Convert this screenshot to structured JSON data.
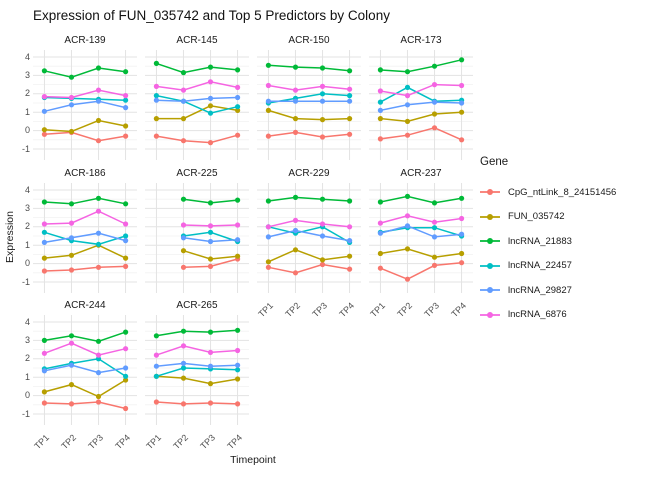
{
  "chart_data": {
    "type": "line",
    "title": "Expression of FUN_035742 and Top 5 Predictors by Colony",
    "xlabel": "Timepoint",
    "ylabel": "Expression",
    "x_categories": [
      "TP1",
      "TP2",
      "TP3",
      "TP4"
    ],
    "y_ticks": [
      4,
      3,
      2,
      1,
      0,
      -1
    ],
    "ylim": [
      -1.25,
      4.25
    ],
    "grid": true,
    "legend_title": "Gene",
    "legend_position": "right",
    "series": [
      {
        "name": "CpG_ntLink_8_24151456",
        "color": "#F8766D"
      },
      {
        "name": "FUN_035742",
        "color": "#B79F00"
      },
      {
        "name": "lncRNA_21883",
        "color": "#00BA38"
      },
      {
        "name": "lncRNA_22457",
        "color": "#00BFC4"
      },
      {
        "name": "lncRNA_29827",
        "color": "#619CFF"
      },
      {
        "name": "lncRNA_6876",
        "color": "#F564E2"
      }
    ],
    "facets": [
      {
        "name": "ACR-139",
        "values": [
          [
            -0.2,
            -0.1,
            -0.55,
            -0.3
          ],
          [
            0.05,
            -0.05,
            0.55,
            0.25
          ],
          [
            3.25,
            2.9,
            3.4,
            3.2
          ],
          [
            1.8,
            1.75,
            1.7,
            1.65
          ],
          [
            1.05,
            1.4,
            1.6,
            1.25
          ],
          [
            1.85,
            1.8,
            2.2,
            1.9
          ]
        ]
      },
      {
        "name": "ACR-145",
        "values": [
          [
            -0.3,
            -0.55,
            -0.65,
            -0.25
          ],
          [
            0.65,
            0.65,
            1.35,
            1.1
          ],
          [
            3.65,
            3.15,
            3.45,
            3.3
          ],
          [
            1.9,
            1.6,
            0.95,
            1.3
          ],
          [
            1.65,
            1.6,
            1.75,
            1.8
          ],
          [
            2.4,
            2.2,
            2.65,
            2.35
          ]
        ]
      },
      {
        "name": "ACR-150",
        "values": [
          [
            -0.3,
            -0.1,
            -0.35,
            -0.2
          ],
          [
            1.1,
            0.65,
            0.6,
            0.65
          ],
          [
            3.55,
            3.45,
            3.4,
            3.25
          ],
          [
            1.5,
            1.75,
            2.0,
            1.9
          ],
          [
            1.6,
            1.6,
            1.6,
            1.6
          ],
          [
            2.45,
            2.2,
            2.4,
            2.25
          ]
        ]
      },
      {
        "name": "ACR-173",
        "values": [
          [
            -0.45,
            -0.25,
            0.15,
            -0.5
          ],
          [
            0.65,
            0.5,
            0.9,
            1.0
          ],
          [
            3.3,
            3.2,
            3.5,
            3.85
          ],
          [
            1.55,
            2.35,
            1.6,
            1.65
          ],
          [
            1.1,
            1.4,
            1.55,
            1.5
          ],
          [
            2.15,
            1.9,
            2.5,
            2.45
          ]
        ]
      },
      {
        "name": "ACR-186",
        "values": [
          [
            -0.4,
            -0.35,
            -0.2,
            -0.15
          ],
          [
            0.3,
            0.45,
            1.0,
            0.3
          ],
          [
            3.35,
            3.25,
            3.55,
            3.25
          ],
          [
            1.7,
            1.25,
            1.05,
            1.5
          ],
          [
            1.15,
            1.4,
            1.65,
            1.25
          ],
          [
            2.15,
            2.2,
            2.85,
            2.15
          ]
        ]
      },
      {
        "name": "ACR-225",
        "values": [
          [
            null,
            -0.2,
            -0.15,
            0.25
          ],
          [
            null,
            0.7,
            0.25,
            0.4
          ],
          [
            null,
            3.5,
            3.3,
            3.45
          ],
          [
            null,
            1.5,
            1.7,
            1.2
          ],
          [
            null,
            1.4,
            1.2,
            1.3
          ],
          [
            null,
            2.1,
            2.05,
            2.1
          ]
        ]
      },
      {
        "name": "ACR-229",
        "values": [
          [
            -0.2,
            -0.5,
            -0.05,
            -0.3
          ],
          [
            0.1,
            0.75,
            0.2,
            0.4
          ],
          [
            3.4,
            3.6,
            3.5,
            3.4
          ],
          [
            2.0,
            1.65,
            2.0,
            1.15
          ],
          [
            1.45,
            1.8,
            1.5,
            1.25
          ],
          [
            2.0,
            2.35,
            2.15,
            2.0
          ]
        ]
      },
      {
        "name": "ACR-237",
        "values": [
          [
            -0.25,
            -0.85,
            -0.1,
            0.05
          ],
          [
            0.55,
            0.8,
            0.35,
            0.55
          ],
          [
            3.35,
            3.65,
            3.3,
            3.55
          ],
          [
            1.7,
            1.95,
            1.95,
            1.5
          ],
          [
            1.65,
            2.05,
            1.45,
            1.6
          ],
          [
            2.2,
            2.6,
            2.25,
            2.45
          ]
        ]
      },
      {
        "name": "ACR-244",
        "values": [
          [
            -0.4,
            -0.45,
            -0.35,
            -0.7
          ],
          [
            0.2,
            0.6,
            -0.05,
            0.85
          ],
          [
            3.0,
            3.25,
            2.95,
            3.45
          ],
          [
            1.45,
            1.75,
            2.0,
            1.05
          ],
          [
            1.35,
            1.65,
            1.25,
            1.5
          ],
          [
            2.3,
            2.85,
            2.2,
            2.55
          ]
        ]
      },
      {
        "name": "ACR-265",
        "values": [
          [
            -0.35,
            -0.45,
            -0.4,
            -0.45
          ],
          [
            1.05,
            0.95,
            0.65,
            0.9
          ],
          [
            3.25,
            3.5,
            3.45,
            3.55
          ],
          [
            1.05,
            1.5,
            1.45,
            1.4
          ],
          [
            1.6,
            1.75,
            1.6,
            1.65
          ],
          [
            2.2,
            2.7,
            2.35,
            2.45
          ]
        ]
      }
    ],
    "style": {
      "major_grid_color": "#E3E3E3",
      "minor_grid_color": "#F2F2F2",
      "background": "#FFFFFF"
    }
  }
}
